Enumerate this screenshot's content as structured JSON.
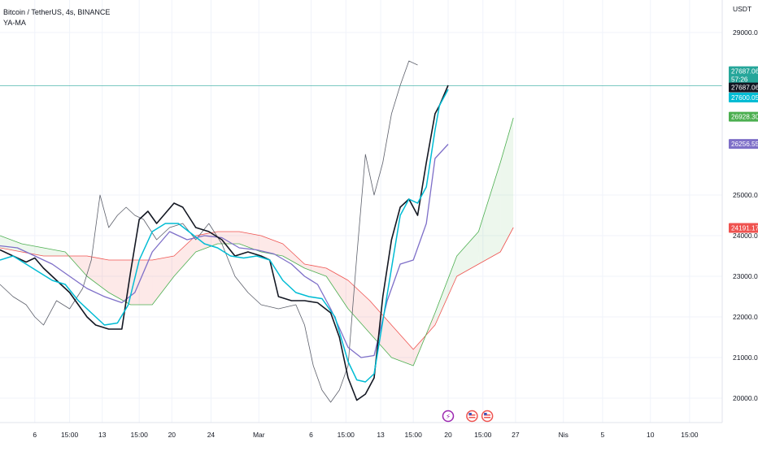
{
  "legend": {
    "symbol": "Bitcoin / TetherUS, 4s, BINANCE",
    "indicator": "YA-MA"
  },
  "colors": {
    "price": "#131722",
    "cyan_ma": "#00bcd4",
    "purple_ma": "#7e6fc8",
    "lag_line": "#5d606b",
    "cloud_green": "#4caf50",
    "cloud_red": "#ef5350",
    "last_price_line": "#26a69a"
  },
  "chart_data": {
    "type": "line",
    "title": "",
    "currency": "USDT",
    "ylim": [
      19400,
      29800
    ],
    "y_ticks": [
      {
        "value": 29000,
        "label": "29000.00"
      },
      {
        "value": 25000,
        "label": "25000.00"
      },
      {
        "value": 24000,
        "label": "24000.00"
      },
      {
        "value": 23000,
        "label": "23000.00"
      },
      {
        "value": 22000,
        "label": "22000.00"
      },
      {
        "value": 21000,
        "label": "21000.00"
      },
      {
        "value": 20000,
        "label": "20000.00"
      }
    ],
    "x_ticks": [
      {
        "x": 0.8,
        "label": "6"
      },
      {
        "x": 1.6,
        "label": "15:00"
      },
      {
        "x": 2.35,
        "label": "13"
      },
      {
        "x": 3.2,
        "label": "15:00"
      },
      {
        "x": 3.95,
        "label": "20"
      },
      {
        "x": 4.85,
        "label": "24"
      },
      {
        "x": 5.95,
        "label": "Mar"
      },
      {
        "x": 7.15,
        "label": "6"
      },
      {
        "x": 7.95,
        "label": "15:00"
      },
      {
        "x": 8.75,
        "label": "13"
      },
      {
        "x": 9.5,
        "label": "15:00"
      },
      {
        "x": 10.3,
        "label": "20"
      },
      {
        "x": 11.1,
        "label": "15:00"
      },
      {
        "x": 11.85,
        "label": "27"
      },
      {
        "x": 12.95,
        "label": "Nis"
      },
      {
        "x": 13.85,
        "label": "5"
      },
      {
        "x": 14.95,
        "label": "10"
      },
      {
        "x": 15.85,
        "label": "15:00"
      }
    ],
    "price_labels": [
      {
        "value": 27687.06,
        "label": "27687.06",
        "sub": "57:26",
        "color": "#26a69a"
      },
      {
        "value": 27687.06,
        "label": "27687.06",
        "color": "#131722"
      },
      {
        "value": 27600.05,
        "label": "27600.05",
        "color": "#00bcd4"
      },
      {
        "value": 26928.3,
        "label": "26928.30",
        "color": "#4caf50"
      },
      {
        "value": 26256.55,
        "label": "26256.55",
        "color": "#7e6fc8"
      },
      {
        "value": 24191.17,
        "label": "24191.17",
        "color": "#ef5350"
      }
    ],
    "series": [
      {
        "values": [
          [
            0,
            23650
          ],
          [
            0.3,
            23500
          ],
          [
            0.6,
            23350
          ],
          [
            0.8,
            23450
          ],
          [
            1.0,
            23200
          ],
          [
            1.2,
            23000
          ],
          [
            1.4,
            22800
          ],
          [
            1.6,
            22600
          ],
          [
            1.8,
            22300
          ],
          [
            2.0,
            22000
          ],
          [
            2.2,
            21800
          ],
          [
            2.5,
            21700
          ],
          [
            2.8,
            21700
          ],
          [
            3.0,
            23100
          ],
          [
            3.2,
            24400
          ],
          [
            3.4,
            24600
          ],
          [
            3.6,
            24300
          ],
          [
            3.8,
            24550
          ],
          [
            4.0,
            24800
          ],
          [
            4.2,
            24700
          ],
          [
            4.5,
            24200
          ],
          [
            4.8,
            24100
          ],
          [
            5.1,
            23900
          ],
          [
            5.4,
            23500
          ],
          [
            5.7,
            23600
          ],
          [
            6.0,
            23500
          ],
          [
            6.2,
            23400
          ],
          [
            6.4,
            22500
          ],
          [
            6.7,
            22400
          ],
          [
            7.0,
            22400
          ],
          [
            7.3,
            22350
          ],
          [
            7.6,
            22100
          ],
          [
            7.8,
            21500
          ],
          [
            8.0,
            20500
          ],
          [
            8.2,
            19950
          ],
          [
            8.4,
            20100
          ],
          [
            8.6,
            20500
          ],
          [
            8.8,
            22500
          ],
          [
            9.0,
            23900
          ],
          [
            9.2,
            24700
          ],
          [
            9.4,
            24900
          ],
          [
            9.6,
            24500
          ],
          [
            9.8,
            25800
          ],
          [
            10.0,
            27000
          ],
          [
            10.1,
            27200
          ],
          [
            10.3,
            27700
          ]
        ]
      },
      {
        "values": [
          [
            0,
            23400
          ],
          [
            0.3,
            23500
          ],
          [
            0.6,
            23300
          ],
          [
            0.9,
            23100
          ],
          [
            1.2,
            22900
          ],
          [
            1.5,
            22800
          ],
          [
            1.8,
            22400
          ],
          [
            2.1,
            22100
          ],
          [
            2.4,
            21800
          ],
          [
            2.7,
            21850
          ],
          [
            2.95,
            22300
          ],
          [
            3.2,
            23400
          ],
          [
            3.5,
            24100
          ],
          [
            3.8,
            24300
          ],
          [
            4.1,
            24300
          ],
          [
            4.4,
            24050
          ],
          [
            4.7,
            23800
          ],
          [
            5.0,
            23700
          ],
          [
            5.3,
            23500
          ],
          [
            5.6,
            23450
          ],
          [
            5.9,
            23500
          ],
          [
            6.2,
            23400
          ],
          [
            6.5,
            22900
          ],
          [
            6.8,
            22600
          ],
          [
            7.1,
            22500
          ],
          [
            7.4,
            22450
          ],
          [
            7.7,
            22000
          ],
          [
            8.0,
            20900
          ],
          [
            8.2,
            20450
          ],
          [
            8.4,
            20400
          ],
          [
            8.6,
            20600
          ],
          [
            8.8,
            21900
          ],
          [
            9.0,
            23200
          ],
          [
            9.2,
            24500
          ],
          [
            9.4,
            24900
          ],
          [
            9.6,
            24800
          ],
          [
            9.8,
            25200
          ],
          [
            10.0,
            26600
          ],
          [
            10.1,
            27200
          ],
          [
            10.3,
            27600
          ]
        ]
      },
      {
        "values": [
          [
            0,
            23750
          ],
          [
            0.4,
            23700
          ],
          [
            0.8,
            23500
          ],
          [
            1.2,
            23300
          ],
          [
            1.6,
            23000
          ],
          [
            2.0,
            22700
          ],
          [
            2.4,
            22500
          ],
          [
            2.8,
            22350
          ],
          [
            3.1,
            22600
          ],
          [
            3.5,
            23600
          ],
          [
            3.9,
            24100
          ],
          [
            4.3,
            23900
          ],
          [
            4.7,
            24000
          ],
          [
            5.1,
            23950
          ],
          [
            5.5,
            23700
          ],
          [
            5.9,
            23650
          ],
          [
            6.3,
            23550
          ],
          [
            6.7,
            23300
          ],
          [
            7.0,
            23000
          ],
          [
            7.3,
            22800
          ],
          [
            7.6,
            22200
          ],
          [
            8.0,
            21250
          ],
          [
            8.3,
            21000
          ],
          [
            8.6,
            21050
          ],
          [
            8.9,
            22400
          ],
          [
            9.2,
            23300
          ],
          [
            9.5,
            23400
          ],
          [
            9.8,
            24300
          ],
          [
            10.0,
            25900
          ],
          [
            10.3,
            26250
          ]
        ]
      },
      {
        "values": [
          [
            0,
            22800
          ],
          [
            0.3,
            22500
          ],
          [
            0.6,
            22300
          ],
          [
            0.8,
            22000
          ],
          [
            1.0,
            21800
          ],
          [
            1.3,
            22400
          ],
          [
            1.6,
            22200
          ],
          [
            1.9,
            22700
          ],
          [
            2.1,
            23400
          ],
          [
            2.3,
            25000
          ],
          [
            2.5,
            24200
          ],
          [
            2.7,
            24500
          ],
          [
            2.9,
            24700
          ],
          [
            3.1,
            24500
          ],
          [
            3.3,
            24400
          ],
          [
            3.6,
            23900
          ],
          [
            3.9,
            24200
          ],
          [
            4.2,
            24300
          ],
          [
            4.5,
            23900
          ],
          [
            4.8,
            24300
          ],
          [
            5.1,
            23800
          ],
          [
            5.4,
            23000
          ],
          [
            5.7,
            22600
          ],
          [
            6.0,
            22300
          ],
          [
            6.4,
            22200
          ],
          [
            6.8,
            22300
          ],
          [
            7.0,
            21800
          ],
          [
            7.2,
            20800
          ],
          [
            7.4,
            20200
          ],
          [
            7.6,
            19900
          ],
          [
            7.8,
            20200
          ],
          [
            8.0,
            20800
          ],
          [
            8.2,
            23500
          ],
          [
            8.4,
            26000
          ],
          [
            8.6,
            25000
          ],
          [
            8.8,
            25800
          ],
          [
            9.0,
            27000
          ],
          [
            9.2,
            27700
          ],
          [
            9.4,
            28300
          ],
          [
            9.6,
            28200
          ]
        ]
      },
      {
        "values": [
          [
            0,
            24000
          ],
          [
            0.5,
            23800
          ],
          [
            1.0,
            23700
          ],
          [
            1.5,
            23600
          ],
          [
            2.0,
            23000
          ],
          [
            2.5,
            22600
          ],
          [
            3.0,
            22300
          ],
          [
            3.5,
            22300
          ],
          [
            4.0,
            23000
          ],
          [
            4.5,
            23600
          ],
          [
            5.0,
            23800
          ],
          [
            5.5,
            23800
          ],
          [
            6.0,
            23600
          ],
          [
            6.5,
            23500
          ],
          [
            7.0,
            23200
          ],
          [
            7.5,
            23000
          ],
          [
            8.0,
            22200
          ],
          [
            8.5,
            21600
          ],
          [
            9.0,
            21000
          ],
          [
            9.5,
            20800
          ],
          [
            10.0,
            22100
          ],
          [
            10.5,
            23500
          ],
          [
            11.0,
            24100
          ],
          [
            11.5,
            25800
          ],
          [
            11.8,
            26900
          ]
        ]
      },
      {
        "values": [
          [
            0,
            23700
          ],
          [
            0.5,
            23600
          ],
          [
            1.0,
            23500
          ],
          [
            1.5,
            23500
          ],
          [
            2.0,
            23500
          ],
          [
            2.5,
            23400
          ],
          [
            3.0,
            23400
          ],
          [
            3.5,
            23400
          ],
          [
            4.0,
            23500
          ],
          [
            4.5,
            24000
          ],
          [
            5.0,
            24100
          ],
          [
            5.5,
            24100
          ],
          [
            6.0,
            24000
          ],
          [
            6.5,
            23800
          ],
          [
            7.0,
            23300
          ],
          [
            7.5,
            23200
          ],
          [
            8.0,
            22900
          ],
          [
            8.5,
            22400
          ],
          [
            9.0,
            21800
          ],
          [
            9.5,
            21200
          ],
          [
            10.0,
            21800
          ],
          [
            10.5,
            23000
          ],
          [
            11.0,
            23300
          ],
          [
            11.5,
            23600
          ],
          [
            11.8,
            24200
          ]
        ]
      }
    ],
    "last_price": 27687.06,
    "x_range": [
      0,
      16.6
    ]
  },
  "event_icons": [
    {
      "x": 10.3,
      "name": "flash-event-icon",
      "glyph": "⚡",
      "color": "#9c27b0"
    },
    {
      "x": 10.85,
      "name": "us-flag-event-icon",
      "glyph": "",
      "color": "#ef5350"
    },
    {
      "x": 11.2,
      "name": "us-flag-event-icon",
      "glyph": "",
      "color": "#ef5350"
    }
  ]
}
